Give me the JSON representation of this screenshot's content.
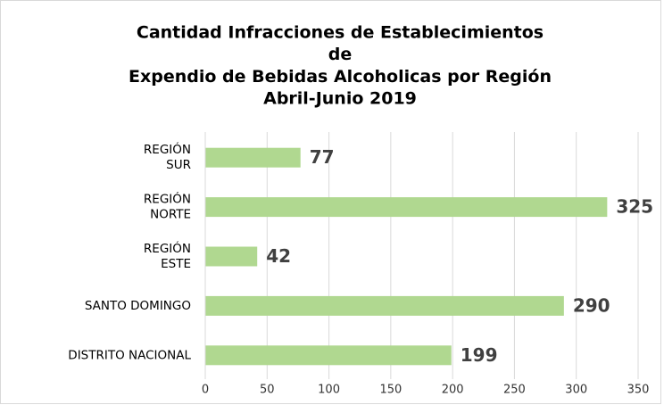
{
  "chart_data": {
    "type": "bar",
    "orientation": "horizontal",
    "title": [
      "Cantidad Infracciones de Establecimientos",
      "de",
      "Expendio de Bebidas Alcoholicas por Región",
      "Abril-Junio 2019"
    ],
    "categories": [
      [
        "REGIÓN",
        "SUR"
      ],
      [
        "REGIÓN",
        "NORTE"
      ],
      [
        "REGIÓN",
        "ESTE"
      ],
      [
        "SANTO DOMINGO"
      ],
      [
        "DISTRITO NACIONAL"
      ]
    ],
    "values": [
      77,
      325,
      42,
      290,
      199
    ],
    "color": "#b0d890",
    "xlim": [
      0,
      350
    ],
    "xticks": [
      0,
      50,
      100,
      150,
      200,
      250,
      300,
      350
    ],
    "grid": true
  }
}
